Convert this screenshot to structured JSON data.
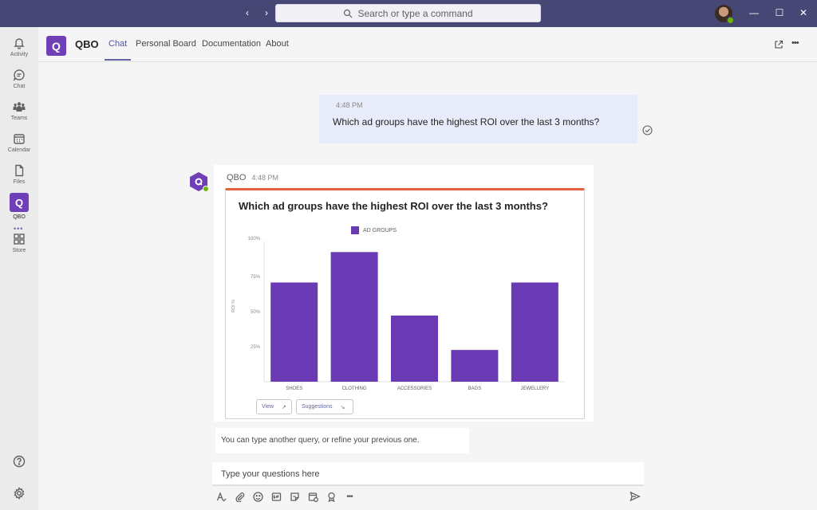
{
  "titlebar": {
    "back_label": "‹",
    "forward_label": "›",
    "search_placeholder": "Search or type a command",
    "minimize": "—",
    "maximize": "☐",
    "close": "✕"
  },
  "rail": {
    "items": [
      {
        "label": "Activity",
        "icon": "bell-icon"
      },
      {
        "label": "Chat",
        "icon": "chat-icon"
      },
      {
        "label": "Teams",
        "icon": "teams-icon"
      },
      {
        "label": "Calendar",
        "icon": "calendar-icon"
      },
      {
        "label": "Files",
        "icon": "file-icon"
      },
      {
        "label": "QBO",
        "icon": "qbo-logo"
      },
      {
        "label": "Store",
        "icon": "store-icon"
      }
    ],
    "qbo_letter": "Q",
    "more": "•••"
  },
  "header": {
    "app_letter": "Q",
    "app_name": "QBO",
    "tabs": [
      "Chat",
      "Personal Board",
      "Documentation",
      "About"
    ],
    "active_tab": "Chat",
    "popout_icon": "popout-icon",
    "more_icon": "•••"
  },
  "chat": {
    "my_message": {
      "time": "4:48 PM",
      "text": "Which ad groups have the highest ROI over the last 3 months?"
    },
    "bot_message": {
      "sender": "QBO",
      "time": "4:48 PM",
      "card_title": "Which ad groups have the highest ROI over the last 3 months?",
      "buttons": [
        {
          "label": "View",
          "icon": "↗"
        },
        {
          "label": "Suggestions",
          "icon": "↘"
        }
      ]
    },
    "hint": "You can type another query, or refine your previous one.",
    "compose_placeholder": "Type your questions here"
  },
  "colors": {
    "bar": "#6a3ab5",
    "accent": "#e0623b",
    "titlebar": "#464775",
    "brand": "#6f3fb8"
  },
  "chart_data": {
    "type": "bar",
    "categories": [
      "SHOES",
      "CLOTHING",
      "ACCESSORIES",
      "BAGS",
      "JEWELLERY"
    ],
    "series": [
      {
        "name": "AD GROUPS",
        "values": [
          75,
          98,
          50,
          24,
          75
        ]
      }
    ],
    "ylabel": "ROI %",
    "yticks": [
      "25%",
      "50%",
      "75%",
      "100%"
    ],
    "ylim": [
      0,
      100
    ],
    "legend": "top-center",
    "grid": false
  }
}
